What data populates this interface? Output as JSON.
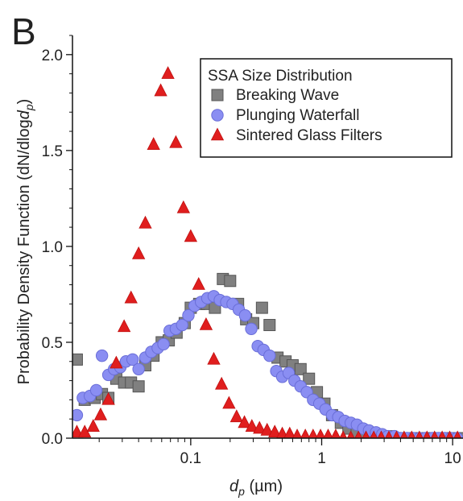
{
  "chart_data": {
    "type": "scatter",
    "panel_label": "B",
    "xlabel": {
      "main": "d",
      "sub": "p",
      "unit": " (µm)"
    },
    "ylabel": {
      "pre": "Probability Density Function (dN/dlog",
      "main": "d",
      "sub": "p",
      "post": ")"
    },
    "xscale": "log",
    "xlim": [
      0.0125,
      12
    ],
    "ylim": [
      0,
      2.1
    ],
    "x_ticks": [
      {
        "value": 0.1,
        "label": "0.1"
      },
      {
        "value": 1,
        "label": "1"
      },
      {
        "value": 10,
        "label": "10"
      }
    ],
    "y_ticks": [
      {
        "value": 0,
        "label": "0.0"
      },
      {
        "value": 0.5,
        "label": "0.5"
      },
      {
        "value": 1.0,
        "label": "1.0"
      },
      {
        "value": 1.5,
        "label": "1.5"
      },
      {
        "value": 2.0,
        "label": "2.0"
      }
    ],
    "legend": {
      "title": "SSA Size Distribution",
      "position": "top-right"
    },
    "series": [
      {
        "name": "Breaking Wave",
        "marker": "square",
        "color": "#808080",
        "stroke": "#555555",
        "x": [
          0.0135,
          0.0155,
          0.0185,
          0.021,
          0.0235,
          0.027,
          0.031,
          0.035,
          0.04,
          0.045,
          0.052,
          0.06,
          0.068,
          0.078,
          0.09,
          0.1,
          0.116,
          0.133,
          0.153,
          0.176,
          0.2,
          0.23,
          0.265,
          0.3,
          0.35,
          0.4,
          0.46,
          0.53,
          0.6,
          0.69,
          0.8,
          0.92,
          1.05,
          1.2,
          1.4,
          1.6,
          1.85,
          2.1,
          2.4,
          2.8,
          3.2,
          3.7,
          4.2,
          4.8,
          5.5,
          6.4,
          7.3,
          8.4,
          9.6,
          11
        ],
        "y": [
          0.41,
          0.2,
          0.21,
          0.23,
          0.21,
          0.31,
          0.29,
          0.29,
          0.27,
          0.38,
          0.43,
          0.5,
          0.51,
          0.55,
          0.6,
          0.68,
          0.7,
          0.7,
          0.68,
          0.83,
          0.82,
          0.7,
          0.62,
          0.6,
          0.68,
          0.59,
          0.42,
          0.4,
          0.38,
          0.36,
          0.31,
          0.24,
          0.18,
          0.12,
          0.08,
          0.05,
          0.03,
          0.02,
          0.01,
          0.01,
          0.01,
          0.0,
          0.0,
          0.0,
          0.0,
          0.0,
          0.0,
          0.0,
          0.0,
          0.0
        ]
      },
      {
        "name": "Plunging Waterfall",
        "marker": "circle",
        "color": "#8A8EF2",
        "stroke": "#6A6ED8",
        "x": [
          0.0135,
          0.015,
          0.017,
          0.019,
          0.021,
          0.0235,
          0.026,
          0.029,
          0.032,
          0.036,
          0.04,
          0.045,
          0.05,
          0.056,
          0.062,
          0.069,
          0.077,
          0.086,
          0.096,
          0.107,
          0.12,
          0.134,
          0.15,
          0.167,
          0.187,
          0.209,
          0.233,
          0.26,
          0.29,
          0.325,
          0.36,
          0.4,
          0.45,
          0.5,
          0.56,
          0.62,
          0.69,
          0.77,
          0.86,
          0.96,
          1.07,
          1.2,
          1.34,
          1.5,
          1.67,
          1.86,
          2.08,
          2.3,
          2.6,
          2.9,
          3.2,
          3.6,
          4.0,
          4.5,
          5.0,
          5.6,
          6.2,
          7.0,
          7.8,
          8.7,
          9.7,
          10.8
        ],
        "y": [
          0.12,
          0.21,
          0.22,
          0.25,
          0.43,
          0.33,
          0.36,
          0.37,
          0.4,
          0.41,
          0.36,
          0.42,
          0.45,
          0.47,
          0.49,
          0.56,
          0.57,
          0.59,
          0.64,
          0.69,
          0.71,
          0.73,
          0.74,
          0.72,
          0.71,
          0.7,
          0.67,
          0.64,
          0.57,
          0.48,
          0.46,
          0.43,
          0.35,
          0.32,
          0.34,
          0.3,
          0.27,
          0.24,
          0.2,
          0.18,
          0.15,
          0.12,
          0.11,
          0.09,
          0.08,
          0.07,
          0.05,
          0.04,
          0.03,
          0.02,
          0.01,
          0.01,
          0.0,
          0.0,
          0.0,
          0.0,
          0.0,
          0.0,
          0.0,
          0.0,
          0.0,
          0.0
        ]
      },
      {
        "name": "Sintered Glass Filters",
        "marker": "triangle",
        "color": "#E01E1E",
        "stroke": "#C01010",
        "x": [
          0.0135,
          0.0155,
          0.018,
          0.0205,
          0.0235,
          0.027,
          0.031,
          0.035,
          0.04,
          0.045,
          0.052,
          0.059,
          0.067,
          0.077,
          0.088,
          0.1,
          0.115,
          0.131,
          0.15,
          0.172,
          0.196,
          0.224,
          0.257,
          0.293,
          0.335,
          0.383,
          0.438,
          0.5,
          0.57,
          0.65,
          0.75,
          0.86,
          0.98,
          1.12,
          1.28,
          1.46,
          1.67,
          1.91,
          2.18,
          2.5,
          2.85,
          3.26,
          3.73,
          4.26,
          4.87,
          5.57,
          6.37,
          7.28,
          8.32,
          9.5,
          10.9
        ],
        "y": [
          0.03,
          0.03,
          0.06,
          0.12,
          0.2,
          0.39,
          0.58,
          0.73,
          0.96,
          1.12,
          1.53,
          1.81,
          1.9,
          1.54,
          1.2,
          1.05,
          0.8,
          0.59,
          0.41,
          0.28,
          0.18,
          0.11,
          0.08,
          0.06,
          0.05,
          0.04,
          0.03,
          0.02,
          0.02,
          0.01,
          0.01,
          0.01,
          0.01,
          0.01,
          0.01,
          0.0,
          0.0,
          0.0,
          0.0,
          0.0,
          0.0,
          0.0,
          0.0,
          0.0,
          0.0,
          0.0,
          0.0,
          0.0,
          0.0,
          0.0,
          0.0
        ]
      }
    ]
  }
}
